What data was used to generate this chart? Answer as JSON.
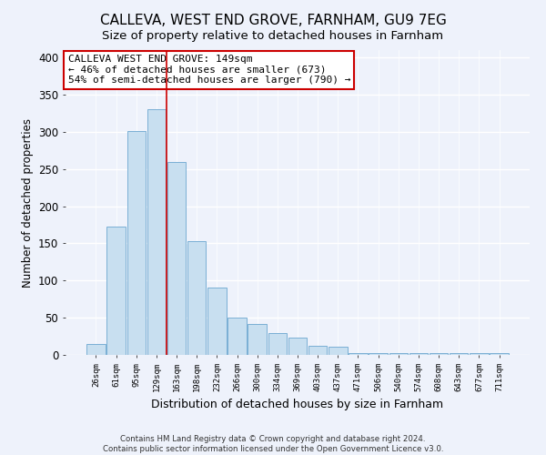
{
  "title": "CALLEVA, WEST END GROVE, FARNHAM, GU9 7EG",
  "subtitle": "Size of property relative to detached houses in Farnham",
  "xlabel": "Distribution of detached houses by size in Farnham",
  "ylabel": "Number of detached properties",
  "footnote1": "Contains HM Land Registry data © Crown copyright and database right 2024.",
  "footnote2": "Contains public sector information licensed under the Open Government Licence v3.0.",
  "bar_labels": [
    "26sqm",
    "61sqm",
    "95sqm",
    "129sqm",
    "163sqm",
    "198sqm",
    "232sqm",
    "266sqm",
    "300sqm",
    "334sqm",
    "369sqm",
    "403sqm",
    "437sqm",
    "471sqm",
    "506sqm",
    "540sqm",
    "574sqm",
    "608sqm",
    "643sqm",
    "677sqm",
    "711sqm"
  ],
  "bar_values": [
    15,
    172,
    301,
    330,
    259,
    153,
    91,
    50,
    42,
    29,
    23,
    12,
    11,
    2,
    2,
    2,
    2,
    3,
    2,
    2,
    3
  ],
  "bar_color": "#c8dff0",
  "bar_edge_color": "#7aafd4",
  "ylim": [
    0,
    410
  ],
  "yticks": [
    0,
    50,
    100,
    150,
    200,
    250,
    300,
    350,
    400
  ],
  "bg_color": "#eef2fb",
  "annotation_title": "CALLEVA WEST END GROVE: 149sqm",
  "annotation_line1": "← 46% of detached houses are smaller (673)",
  "annotation_line2": "54% of semi-detached houses are larger (790) →",
  "annotation_box_color": "#ffffff",
  "annotation_box_edge": "#cc0000",
  "property_bar_index": 4,
  "property_line_color": "#cc0000",
  "grid_color": "#ffffff",
  "title_fontsize": 11,
  "subtitle_fontsize": 9.5
}
